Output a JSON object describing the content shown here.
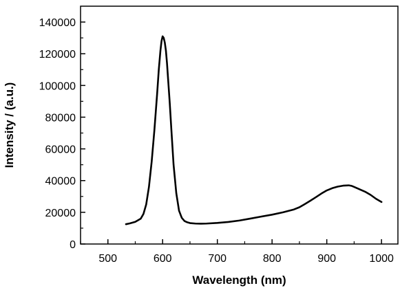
{
  "chart_data": {
    "type": "line",
    "title": "",
    "xlabel": "Wavelength (nm)",
    "ylabel": "Intensity / (a.u.)",
    "xlim": [
      450,
      1030
    ],
    "ylim": [
      0,
      150000
    ],
    "x_ticks": [
      500,
      600,
      700,
      800,
      900,
      1000
    ],
    "x_tick_labels": [
      "500",
      "600",
      "700",
      "800",
      "900",
      "1000"
    ],
    "x_minor_ticks": [
      450,
      550,
      650,
      750,
      850,
      950
    ],
    "y_ticks": [
      0,
      20000,
      40000,
      60000,
      80000,
      100000,
      120000,
      140000
    ],
    "y_tick_labels": [
      "0",
      "20000",
      "40000",
      "60000",
      "80000",
      "100000",
      "120000",
      "140000"
    ],
    "y_minor_ticks": [
      10000,
      30000,
      50000,
      70000,
      90000,
      110000,
      130000
    ],
    "grid": false,
    "legend": "none",
    "line_color": "#000000",
    "series": [
      {
        "x": [
          533,
          540,
          550,
          560,
          565,
          570,
          575,
          580,
          585,
          590,
          593,
          596,
          598,
          600,
          602,
          604,
          606,
          608,
          610,
          613,
          616,
          620,
          625,
          630,
          635,
          640,
          645,
          650,
          660,
          670,
          680,
          700,
          720,
          740,
          760,
          780,
          800,
          820,
          840,
          850,
          860,
          870,
          880,
          890,
          900,
          910,
          920,
          930,
          940,
          945,
          950,
          960,
          970,
          980,
          990,
          1000
        ],
        "y": [
          12500,
          13000,
          14000,
          16000,
          19000,
          25000,
          36000,
          52000,
          72000,
          95000,
          110000,
          122000,
          128000,
          131000,
          130000,
          127000,
          122000,
          114000,
          104000,
          89000,
          72000,
          50000,
          32000,
          21000,
          16500,
          14500,
          13700,
          13200,
          12900,
          12800,
          12900,
          13300,
          13900,
          14800,
          16000,
          17300,
          18500,
          20000,
          21800,
          23200,
          25200,
          27300,
          29500,
          31800,
          33800,
          35200,
          36200,
          36800,
          37000,
          36700,
          36000,
          34500,
          33000,
          31000,
          28500,
          26500
        ]
      }
    ]
  }
}
